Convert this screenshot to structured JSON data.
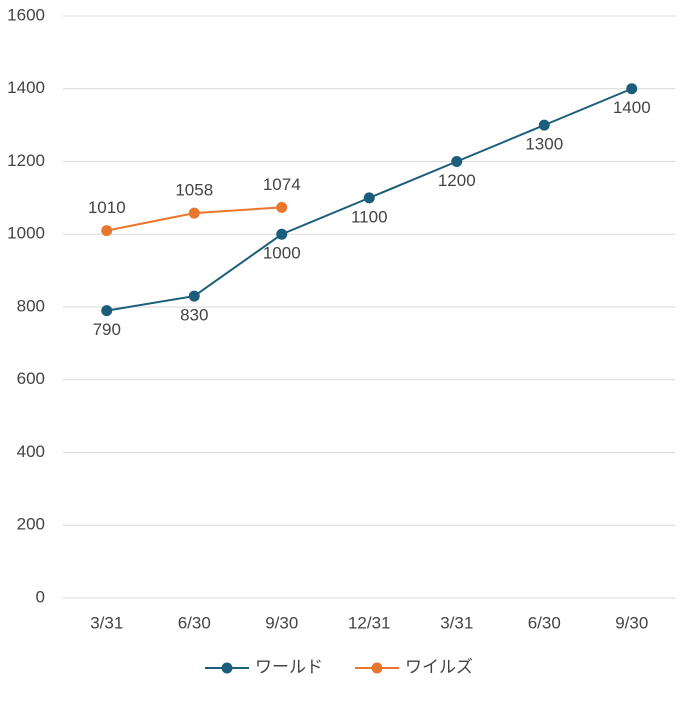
{
  "chart_data": {
    "type": "line",
    "categories": [
      "3/31",
      "6/30",
      "9/30",
      "12/31",
      "3/31",
      "6/30",
      "9/30"
    ],
    "series": [
      {
        "name": "ワールド",
        "color": "#1b5e7b",
        "values": [
          790,
          830,
          1000,
          1100,
          1200,
          1300,
          1400
        ],
        "label_position": "below"
      },
      {
        "name": "ワイルズ",
        "color": "#e8762d",
        "values": [
          1010,
          1058,
          1074,
          null,
          null,
          null,
          null
        ],
        "label_position": "above"
      }
    ],
    "ylim": [
      0,
      1600
    ],
    "yticks": [
      0,
      200,
      400,
      600,
      800,
      1000,
      1200,
      1400,
      1600
    ],
    "grid": true,
    "legend": "bottom"
  }
}
